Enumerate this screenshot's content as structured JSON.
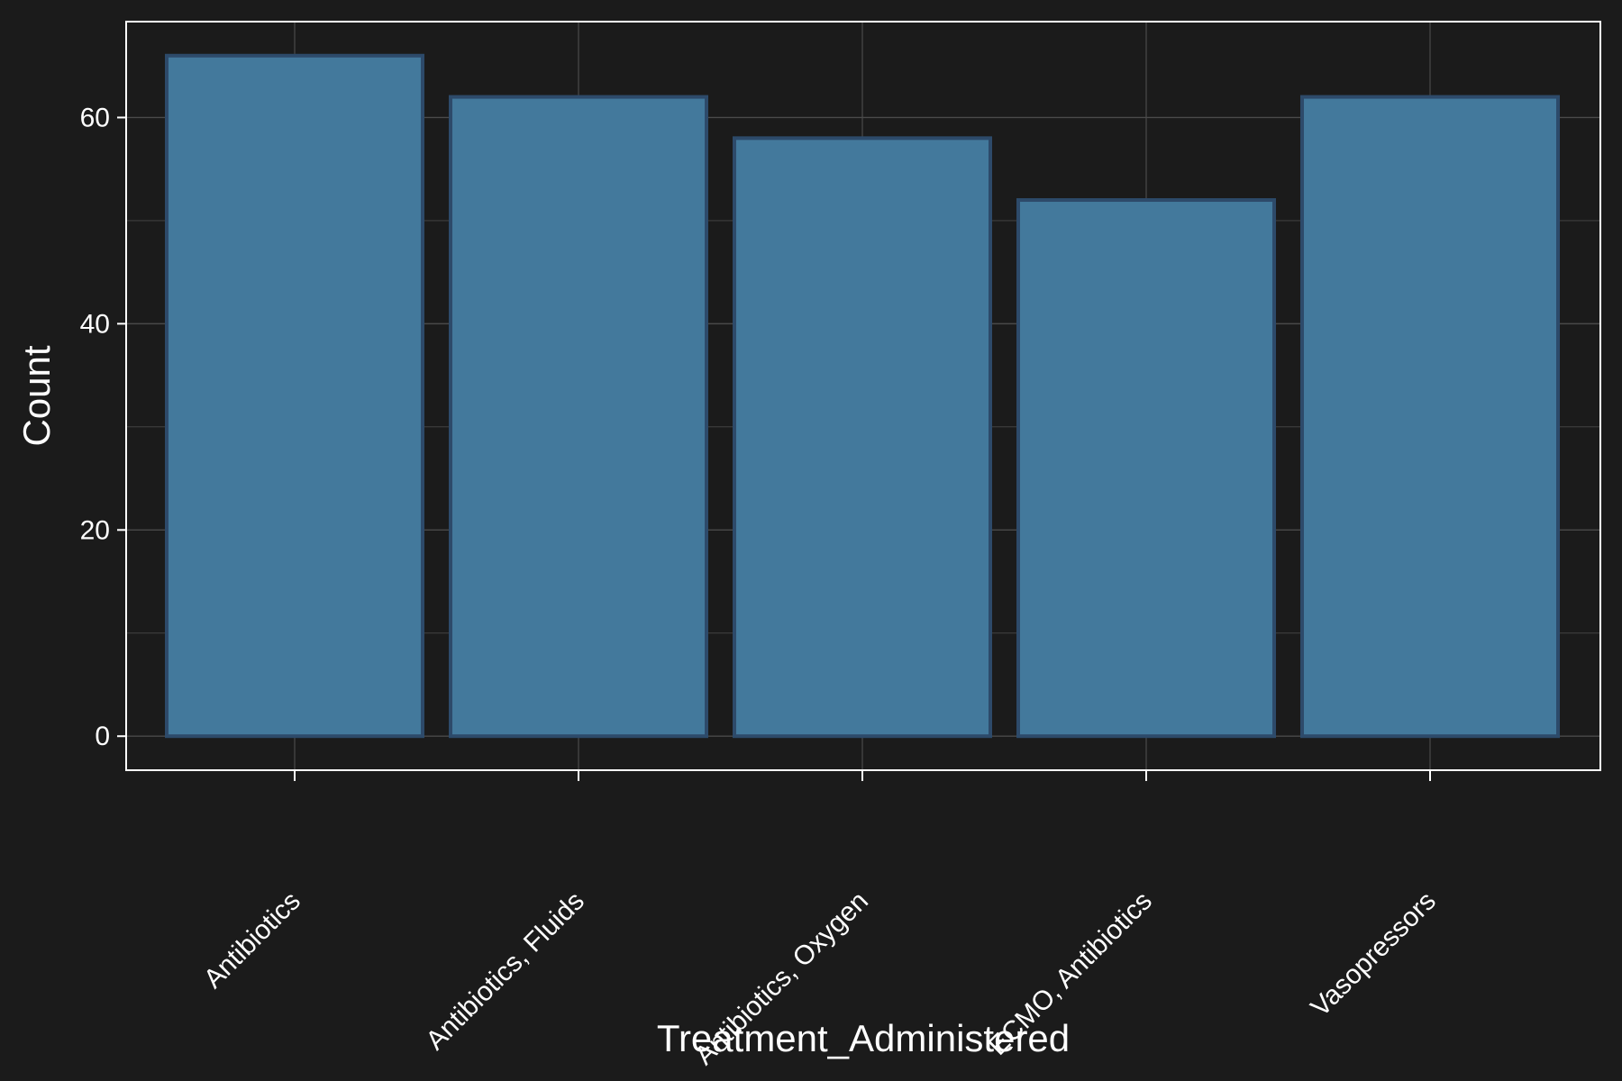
{
  "chart_data": {
    "type": "bar",
    "title": "",
    "xlabel": "Treatment_Administered",
    "ylabel": "Count",
    "categories": [
      "Antibiotics",
      "Antibiotics, Fluids",
      "Antibiotics, Oxygen",
      "ECMO, Antibiotics",
      "Vasopressors"
    ],
    "values": [
      66,
      62,
      58,
      52,
      62
    ],
    "ylim": [
      -3.3,
      69.3
    ],
    "yticks": [
      0,
      20,
      40,
      60
    ],
    "grid": true,
    "colors": {
      "background": "#1b1b1b",
      "bar_fill": "#43799c",
      "bar_edge": "#2d4a6a",
      "grid": "#4a4a4a",
      "axis": "#ffffff",
      "text": "#ffffff"
    }
  }
}
